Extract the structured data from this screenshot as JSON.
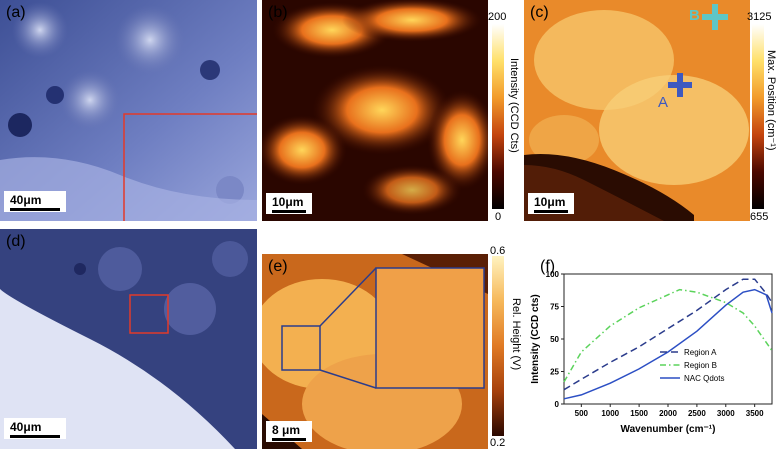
{
  "panels": {
    "a": {
      "label": "(a)",
      "scale": "40μm"
    },
    "b": {
      "label": "(b)",
      "scale": "10μm",
      "colorbar": {
        "title": "Intensity (CCD Cts)",
        "max": "200",
        "min": "0"
      }
    },
    "c": {
      "label": "(c)",
      "scale": "10μm",
      "colorbar": {
        "title": "Max. Position (cm⁻¹)",
        "max": "3125",
        "min": "655"
      },
      "marker_a": "A",
      "marker_b": "B"
    },
    "d": {
      "label": "(d)",
      "scale": "40μm"
    },
    "e": {
      "label": "(e)",
      "scale": "8 μm",
      "colorbar": {
        "title": "Rel. Height (V)",
        "max": "0.6",
        "min": "0.2"
      }
    },
    "f": {
      "label": "(f)"
    }
  },
  "colors": {
    "region_a": "#2b3c8c",
    "region_b": "#5bd35b",
    "nac": "#2c4fc4",
    "outline": "#e23a2a"
  },
  "chart_data": {
    "type": "line",
    "xlabel": "Wavenumber (cm⁻¹)",
    "ylabel": "Intensity (CCD cts)",
    "xlim": [
      200,
      3800
    ],
    "ylim": [
      0,
      100
    ],
    "xticks": [
      "500",
      "1000",
      "1500",
      "2000",
      "2500",
      "3000",
      "3500"
    ],
    "xtick_values": [
      500,
      1000,
      1500,
      2000,
      2500,
      3000,
      3500
    ],
    "yticks": [
      "0",
      "25",
      "50",
      "75",
      "100"
    ],
    "ytick_values": [
      0,
      25,
      50,
      75,
      100
    ],
    "series": [
      {
        "name": "Region A",
        "style": "dashed",
        "color": "#2b3c8c",
        "x": [
          200,
          500,
          1000,
          1500,
          2000,
          2500,
          3000,
          3300,
          3500,
          3700,
          3800
        ],
        "y": [
          11,
          19,
          32,
          44,
          58,
          72,
          88,
          96,
          96,
          85,
          78
        ]
      },
      {
        "name": "Region B",
        "style": "dashdot",
        "color": "#5bd35b",
        "x": [
          200,
          500,
          1000,
          1500,
          2000,
          2200,
          2500,
          3000,
          3300,
          3500,
          3800
        ],
        "y": [
          17,
          40,
          60,
          74,
          84,
          88,
          86,
          78,
          70,
          60,
          41
        ]
      },
      {
        "name": "NAC Qdots",
        "style": "solid",
        "color": "#2c4fc4",
        "x": [
          200,
          500,
          1000,
          1500,
          2000,
          2500,
          3000,
          3300,
          3500,
          3700,
          3800
        ],
        "y": [
          4,
          7,
          16,
          27,
          40,
          56,
          76,
          86,
          88,
          84,
          70
        ]
      }
    ]
  }
}
